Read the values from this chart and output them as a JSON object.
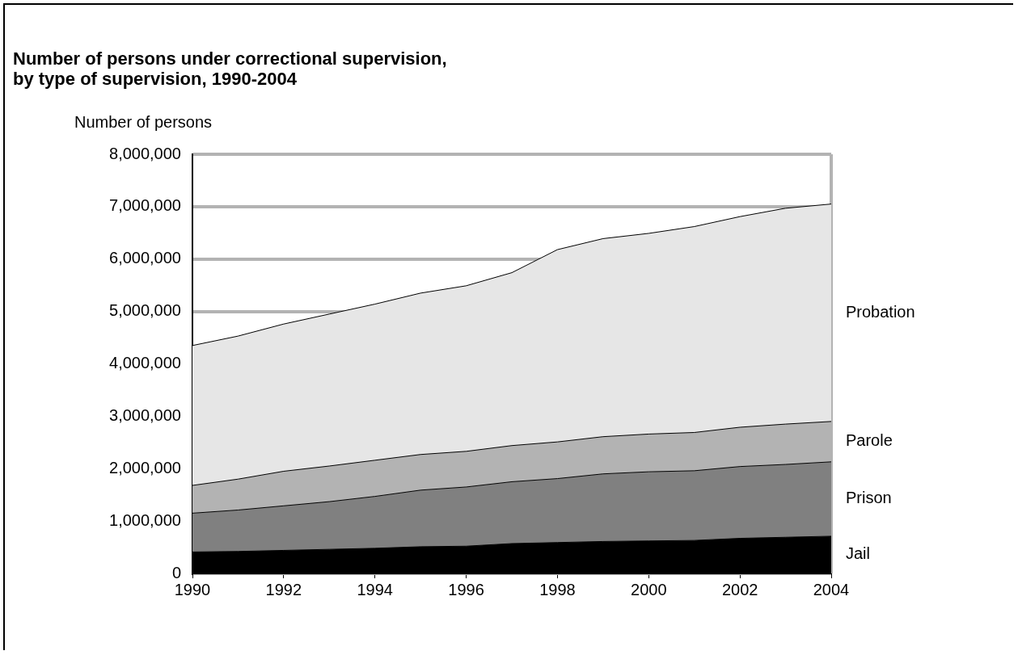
{
  "chart_data": {
    "type": "area",
    "title": "Number of persons under correctional supervision, by type of supervision, 1990-2004",
    "ylabel": "Number of persons",
    "x": [
      1990,
      1991,
      1992,
      1993,
      1994,
      1995,
      1996,
      1997,
      1998,
      1999,
      2000,
      2001,
      2002,
      2003,
      2004
    ],
    "series": [
      {
        "name": "Jail",
        "color": "#000000",
        "values": [
          410000,
          420000,
          440000,
          460000,
          480000,
          510000,
          520000,
          570000,
          590000,
          610000,
          620000,
          630000,
          670000,
          690000,
          710000
        ]
      },
      {
        "name": "Prison",
        "color": "#808080",
        "values": [
          740000,
          790000,
          850000,
          910000,
          990000,
          1080000,
          1130000,
          1180000,
          1220000,
          1290000,
          1320000,
          1330000,
          1370000,
          1390000,
          1420000
        ]
      },
      {
        "name": "Parole",
        "color": "#b3b3b3",
        "values": [
          530000,
          590000,
          660000,
          680000,
          690000,
          680000,
          680000,
          690000,
          700000,
          710000,
          720000,
          730000,
          750000,
          770000,
          770000
        ]
      },
      {
        "name": "Probation",
        "color": "#e6e6e6",
        "values": [
          2670000,
          2730000,
          2810000,
          2900000,
          2980000,
          3080000,
          3160000,
          3300000,
          3670000,
          3780000,
          3830000,
          3930000,
          4020000,
          4120000,
          4150000
        ]
      }
    ],
    "stacked": true,
    "xlim": [
      1990,
      2004
    ],
    "xticks": [
      1990,
      1992,
      1994,
      1996,
      1998,
      2000,
      2002,
      2004
    ],
    "ylim": [
      0,
      8000000
    ],
    "yticks": [
      0,
      {
        "value": 1000000,
        "label": "1,000,000"
      },
      {
        "value": 2000000,
        "label": "2,000,000"
      },
      {
        "value": 3000000,
        "label": "3,000,000"
      },
      {
        "value": 4000000,
        "label": "4,000,000"
      },
      {
        "value": 5000000,
        "label": "5,000,000"
      },
      {
        "value": 6000000,
        "label": "6,000,000"
      },
      {
        "value": 7000000,
        "label": "7,000,000"
      },
      {
        "value": 8000000,
        "label": "8,000,000"
      }
    ],
    "grid": "y",
    "legend": false
  }
}
